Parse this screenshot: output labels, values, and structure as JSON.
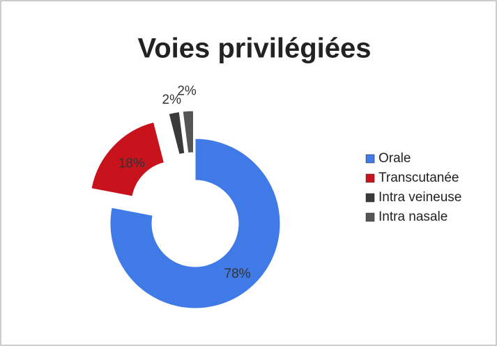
{
  "chart_data": {
    "type": "doughnut",
    "title": "Voies privilégiées",
    "categories": [
      "Orale",
      "Transcutanée",
      "Intra veineuse",
      "Intra nasale"
    ],
    "values": [
      78,
      18,
      2,
      2
    ],
    "value_labels": [
      "78%",
      "18%",
      "2%",
      "2%"
    ],
    "colors": [
      "#3f7ae6",
      "#c8121c",
      "#3a3a3a",
      "#555555"
    ],
    "legend": "right"
  }
}
